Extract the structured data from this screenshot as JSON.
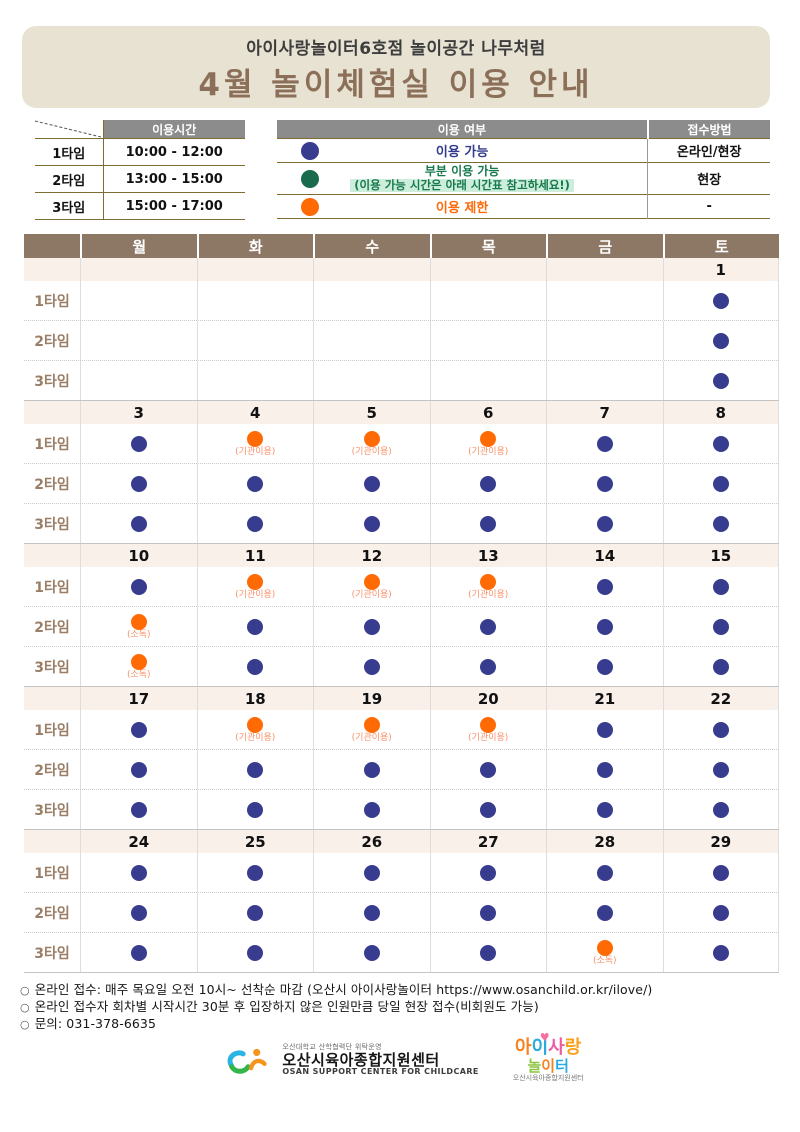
{
  "header": {
    "subtitle": "아이사랑놀이터6호점 놀이공간 나무처럼",
    "title": "4월 놀이체험실 이용 안내"
  },
  "time_table": {
    "header_label": "이용시간",
    "rows": [
      {
        "label": "1타임",
        "time": "10:00 - 12:00"
      },
      {
        "label": "2타임",
        "time": "13:00 - 15:00"
      },
      {
        "label": "3타임",
        "time": "15:00 - 17:00"
      }
    ]
  },
  "status_table": {
    "status_header": "이용 여부",
    "method_header": "접수방법",
    "rows": [
      {
        "dot": "blue",
        "label": "이용 가능",
        "note": "",
        "method": "온라인/현장"
      },
      {
        "dot": "green",
        "label": "부분 이용 가능",
        "note": "(이용 가능 시간은 아래 시간표 참고하세요!)",
        "method": "현장"
      },
      {
        "dot": "orange",
        "label": "이용 제한",
        "note": "",
        "method": "-"
      }
    ]
  },
  "colors": {
    "blue": "#373c8e",
    "green": "#1a6b4d",
    "orange": "#ff6a05",
    "banner_bg": "#e8e2d3",
    "calendar_header_bg": "#8d7866",
    "date_row_bg": "#faf0ea"
  },
  "calendar": {
    "day_headers": [
      "월",
      "화",
      "수",
      "목",
      "금",
      "토"
    ],
    "time_labels": [
      "1타임",
      "2타임",
      "3타임"
    ],
    "weeks": [
      {
        "dates": [
          "",
          "",
          "",
          "",
          "",
          "1"
        ],
        "rows": [
          [
            null,
            null,
            null,
            null,
            null,
            {
              "dot": "blue"
            }
          ],
          [
            null,
            null,
            null,
            null,
            null,
            {
              "dot": "blue"
            }
          ],
          [
            null,
            null,
            null,
            null,
            null,
            {
              "dot": "blue"
            }
          ]
        ]
      },
      {
        "dates": [
          "3",
          "4",
          "5",
          "6",
          "7",
          "8"
        ],
        "rows": [
          [
            {
              "dot": "blue"
            },
            {
              "dot": "orange",
              "note": "(기관이용)"
            },
            {
              "dot": "orange",
              "note": "(기관이용)"
            },
            {
              "dot": "orange",
              "note": "(기관이용)"
            },
            {
              "dot": "blue"
            },
            {
              "dot": "blue"
            }
          ],
          [
            {
              "dot": "blue"
            },
            {
              "dot": "blue"
            },
            {
              "dot": "blue"
            },
            {
              "dot": "blue"
            },
            {
              "dot": "blue"
            },
            {
              "dot": "blue"
            }
          ],
          [
            {
              "dot": "blue"
            },
            {
              "dot": "blue"
            },
            {
              "dot": "blue"
            },
            {
              "dot": "blue"
            },
            {
              "dot": "blue"
            },
            {
              "dot": "blue"
            }
          ]
        ]
      },
      {
        "dates": [
          "10",
          "11",
          "12",
          "13",
          "14",
          "15"
        ],
        "rows": [
          [
            {
              "dot": "blue"
            },
            {
              "dot": "orange",
              "note": "(기관이용)"
            },
            {
              "dot": "orange",
              "note": "(기관이용)"
            },
            {
              "dot": "orange",
              "note": "(기관이용)"
            },
            {
              "dot": "blue"
            },
            {
              "dot": "blue"
            }
          ],
          [
            {
              "dot": "orange",
              "note": "(소독)"
            },
            {
              "dot": "blue"
            },
            {
              "dot": "blue"
            },
            {
              "dot": "blue"
            },
            {
              "dot": "blue"
            },
            {
              "dot": "blue"
            }
          ],
          [
            {
              "dot": "orange",
              "note": "(소독)"
            },
            {
              "dot": "blue"
            },
            {
              "dot": "blue"
            },
            {
              "dot": "blue"
            },
            {
              "dot": "blue"
            },
            {
              "dot": "blue"
            }
          ]
        ]
      },
      {
        "dates": [
          "17",
          "18",
          "19",
          "20",
          "21",
          "22"
        ],
        "rows": [
          [
            {
              "dot": "blue"
            },
            {
              "dot": "orange",
              "note": "(기관이용)"
            },
            {
              "dot": "orange",
              "note": "(기관이용)"
            },
            {
              "dot": "orange",
              "note": "(기관이용)"
            },
            {
              "dot": "blue"
            },
            {
              "dot": "blue"
            }
          ],
          [
            {
              "dot": "blue"
            },
            {
              "dot": "blue"
            },
            {
              "dot": "blue"
            },
            {
              "dot": "blue"
            },
            {
              "dot": "blue"
            },
            {
              "dot": "blue"
            }
          ],
          [
            {
              "dot": "blue"
            },
            {
              "dot": "blue"
            },
            {
              "dot": "blue"
            },
            {
              "dot": "blue"
            },
            {
              "dot": "blue"
            },
            {
              "dot": "blue"
            }
          ]
        ]
      },
      {
        "dates": [
          "24",
          "25",
          "26",
          "27",
          "28",
          "29"
        ],
        "rows": [
          [
            {
              "dot": "blue"
            },
            {
              "dot": "blue"
            },
            {
              "dot": "blue"
            },
            {
              "dot": "blue"
            },
            {
              "dot": "blue"
            },
            {
              "dot": "blue"
            }
          ],
          [
            {
              "dot": "blue"
            },
            {
              "dot": "blue"
            },
            {
              "dot": "blue"
            },
            {
              "dot": "blue"
            },
            {
              "dot": "blue"
            },
            {
              "dot": "blue"
            }
          ],
          [
            {
              "dot": "blue"
            },
            {
              "dot": "blue"
            },
            {
              "dot": "blue"
            },
            {
              "dot": "blue"
            },
            {
              "dot": "orange",
              "note": "(소독)"
            },
            {
              "dot": "blue"
            }
          ]
        ]
      }
    ]
  },
  "notes": {
    "bullet": "○",
    "items": [
      "온라인 접수: 매주 목요일 오전 10시~ 선착순 마감 (오산시 아이사랑놀이터 https://www.osanchild.or.kr/ilove/)",
      "온라인 접수자 회차별 시작시간 30분 후 입장하지 않은 인원만큼 당일 현장 접수(비회원도 가능)",
      "문의: 031-378-6635"
    ]
  },
  "footer_logos": {
    "center_small_top": "오산대학교 산학협력단 위탁운영",
    "center_name": "오산시육아종합지원센터",
    "center_name_en": "OSAN SUPPORT CENTER FOR CHILDCARE",
    "right_heart": "♥",
    "right_line1": [
      {
        "ch": "아",
        "color": "#f5831f"
      },
      {
        "ch": "이",
        "color": "#29abe2"
      },
      {
        "ch": "사",
        "color": "#ef5ba1"
      },
      {
        "ch": "랑",
        "color": "#f9a11b"
      }
    ],
    "right_line2": [
      {
        "ch": "놀",
        "color": "#8dc63f"
      },
      {
        "ch": "이",
        "color": "#f5831f"
      },
      {
        "ch": "터",
        "color": "#29abe2"
      }
    ],
    "right_small": "오산시육아종합지원센터"
  }
}
